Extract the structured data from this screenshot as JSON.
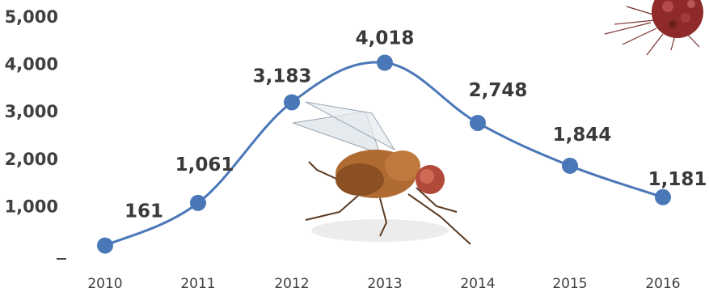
{
  "chart_data": {
    "type": "line",
    "x": [
      "2010",
      "2011",
      "2012",
      "2013",
      "2014",
      "2015",
      "2016"
    ],
    "series": [
      {
        "values": [
          161,
          1061,
          3183,
          4018,
          2748,
          1844,
          1181
        ],
        "labels": [
          "161",
          "1,061",
          "3,183",
          "4,018",
          "2,748",
          "1,844",
          "1,181"
        ]
      }
    ],
    "yticks": [
      "-",
      "1,000",
      "2,000",
      "3,000",
      "4,000",
      "5,000"
    ],
    "ylim": [
      0,
      5000
    ],
    "grid": false,
    "legend": "none",
    "line_color": "#4a77b8",
    "marker_color": "#4a77b8",
    "illustrations": [
      "fly-illustration",
      "red-germ-illustration"
    ]
  }
}
